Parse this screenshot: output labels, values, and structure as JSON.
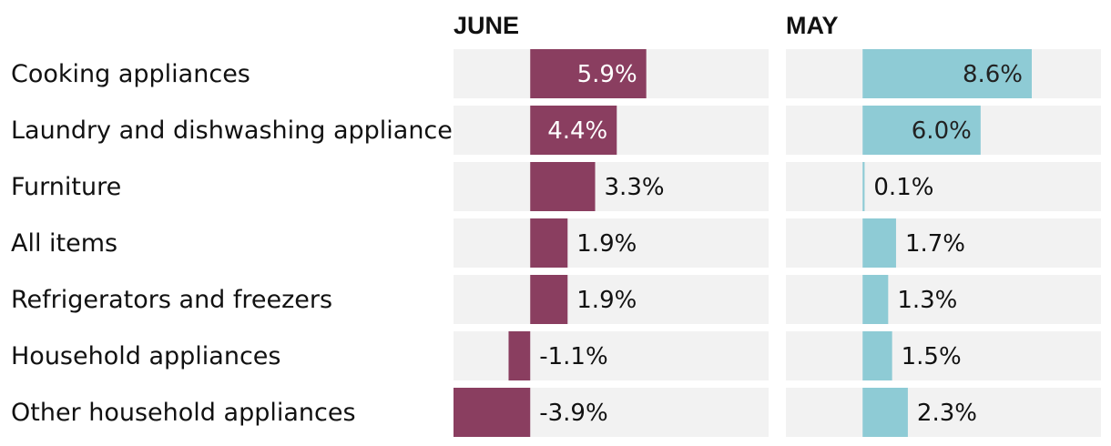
{
  "chart_data": {
    "type": "bar",
    "orientation": "horizontal",
    "categories": [
      "Cooking appliances",
      "Laundry and dishwashing appliances",
      "Furniture",
      "All items",
      "Refrigerators and freezers",
      "Household appliances",
      "Other household appliances"
    ],
    "xlim": [
      -3.9,
      8.6
    ],
    "series": [
      {
        "name": "JUNE",
        "color": "#8a3e60",
        "values": [
          5.9,
          4.4,
          3.3,
          1.9,
          1.9,
          -1.1,
          -3.9
        ],
        "labels": [
          "5.9%",
          "4.4%",
          "3.3%",
          "1.9%",
          "1.9%",
          "-1.1%",
          "-3.9%"
        ]
      },
      {
        "name": "MAY",
        "color": "#8ecbd5",
        "values": [
          8.6,
          6.0,
          0.1,
          1.7,
          1.3,
          1.5,
          2.3
        ],
        "labels": [
          "8.6%",
          "6.0%",
          "0.1%",
          "1.7%",
          "1.3%",
          "1.5%",
          "2.3%"
        ]
      }
    ]
  }
}
